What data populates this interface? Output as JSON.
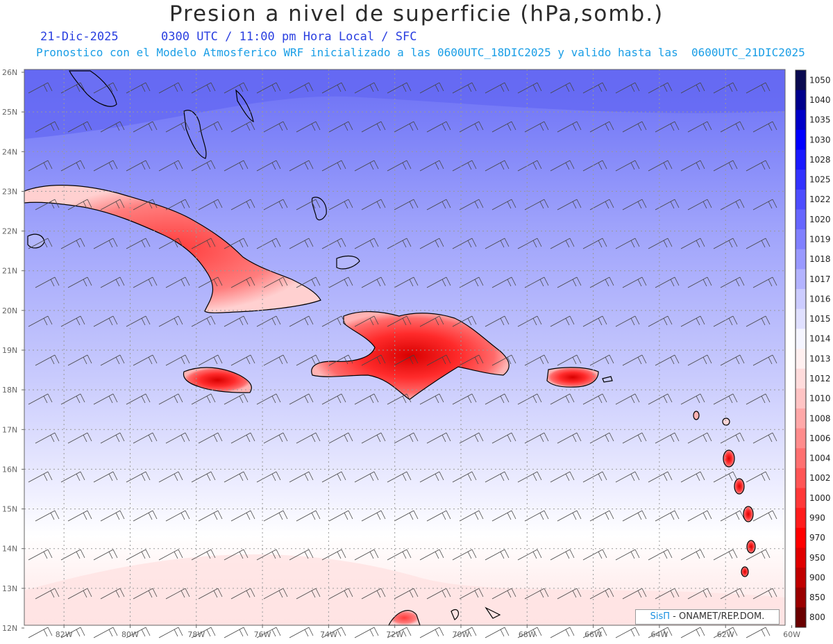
{
  "header": {
    "title": "Presion a nivel de superficie (hPa,somb.)",
    "date": "21-Dic-2025",
    "time": "0300 UTC / 11:00 pm Hora Local / SFC",
    "model_info": "Pronostico con el Modelo Atmosferico WRF inicializado a las 0600UTC_18DIC2025 y valido hasta las  0600UTC_21DIC2025"
  },
  "map": {
    "lat_labels": [
      "26N",
      "25N",
      "24N",
      "23N",
      "22N",
      "21N",
      "20N",
      "19N",
      "18N",
      "17N",
      "16N",
      "15N",
      "14N",
      "13N",
      "12N"
    ],
    "lon_labels": [
      "82W",
      "80W",
      "78W",
      "76W",
      "74W",
      "72W",
      "70W",
      "68W",
      "66W",
      "64W",
      "62W",
      "60W"
    ],
    "lat_range": [
      12,
      26
    ],
    "lon_range": [
      -83.2,
      -60.2
    ],
    "gridlines": "dotted",
    "islands": [
      {
        "name": "Cuba"
      },
      {
        "name": "Jamaica"
      },
      {
        "name": "Hispaniola"
      },
      {
        "name": "Puerto Rico"
      },
      {
        "name": "Bahamas"
      },
      {
        "name": "Lesser Antilles"
      }
    ]
  },
  "colorbar": {
    "levels": [
      "1050",
      "1040",
      "1035",
      "1030",
      "1028",
      "1025",
      "1022",
      "1020",
      "1019",
      "1018",
      "1017",
      "1016",
      "1015",
      "1014",
      "1013",
      "1012",
      "1010",
      "1008",
      "1006",
      "1004",
      "1002",
      "1000",
      "990",
      "970",
      "950",
      "900",
      "850",
      "800"
    ],
    "colors": [
      "#0a0a50",
      "#00008c",
      "#0000c8",
      "#0000ff",
      "#1a1aff",
      "#3333ff",
      "#4d4dff",
      "#6666ff",
      "#8080ff",
      "#9999ff",
      "#b3b3ff",
      "#ccccff",
      "#e0e0ff",
      "#f5f5ff",
      "#fff0f0",
      "#ffdcdc",
      "#ffc4c4",
      "#ffa8a8",
      "#ff8c8c",
      "#ff7070",
      "#ff5555",
      "#ff3838",
      "#ff1c1c",
      "#ff0000",
      "#e00000",
      "#c00000",
      "#9a0000",
      "#6a0000"
    ]
  },
  "credit": {
    "brand": "SisΠ",
    "text": " - ONAMET/REP.DOM."
  }
}
